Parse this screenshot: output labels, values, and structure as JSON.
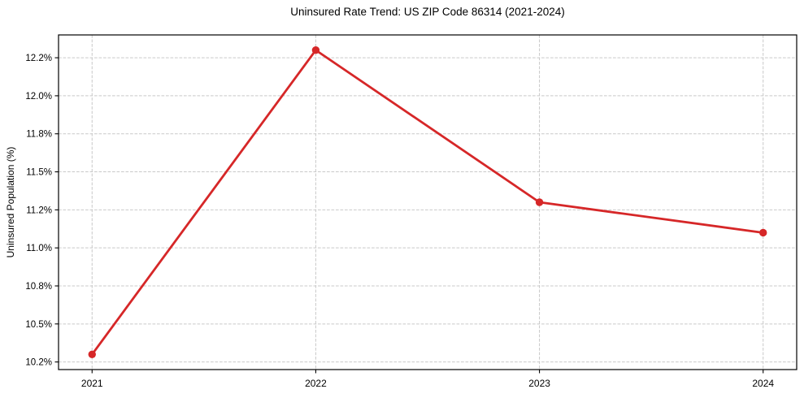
{
  "chart_data": {
    "type": "line",
    "title": "Uninsured Rate Trend: US ZIP Code 86314 (2021-2024)",
    "xlabel": "",
    "ylabel": "Uninsured Population (%)",
    "x": [
      2021,
      2022,
      2023,
      2024
    ],
    "values": [
      10.3,
      12.3,
      11.3,
      11.1
    ],
    "xlim": [
      2020.85,
      2024.15
    ],
    "ylim": [
      10.2,
      12.4
    ],
    "xticks": [
      {
        "value": 2021,
        "label": "2021"
      },
      {
        "value": 2022,
        "label": "2022"
      },
      {
        "value": 2023,
        "label": "2023"
      },
      {
        "value": 2024,
        "label": "2024"
      }
    ],
    "yticks": [
      {
        "value": 10.25,
        "label": "10.2%"
      },
      {
        "value": 10.5,
        "label": "10.5%"
      },
      {
        "value": 10.75,
        "label": "10.8%"
      },
      {
        "value": 11.0,
        "label": "11.0%"
      },
      {
        "value": 11.25,
        "label": "11.2%"
      },
      {
        "value": 11.5,
        "label": "11.5%"
      },
      {
        "value": 11.75,
        "label": "11.8%"
      },
      {
        "value": 12.0,
        "label": "12.0%"
      },
      {
        "value": 12.25,
        "label": "12.2%"
      }
    ],
    "grid": true,
    "grid_style": "dashed",
    "legend": false,
    "marker": "circle",
    "colors": {
      "line": "#d62728",
      "grid": "#c9c9c9",
      "axis": "#000000",
      "text": "#000000",
      "background": "#ffffff"
    }
  }
}
